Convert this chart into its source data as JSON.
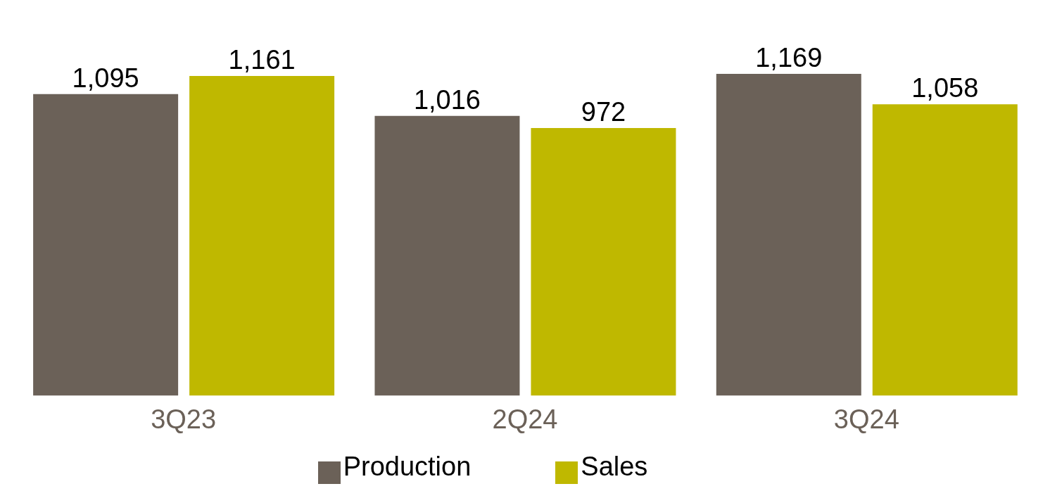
{
  "chart_data": {
    "type": "bar",
    "categories": [
      "3Q23",
      "2Q24",
      "3Q24"
    ],
    "series": [
      {
        "name": "Production",
        "color": "#6b6158",
        "values": [
          1095,
          1016,
          1169
        ],
        "value_labels": [
          "1,095",
          "1,016",
          "1,169"
        ]
      },
      {
        "name": "Sales",
        "color": "#bfb800",
        "values": [
          1161,
          972,
          1058
        ],
        "value_labels": [
          "1,161",
          "972",
          "1,058"
        ]
      }
    ],
    "legend": "bottom",
    "grid": false
  }
}
